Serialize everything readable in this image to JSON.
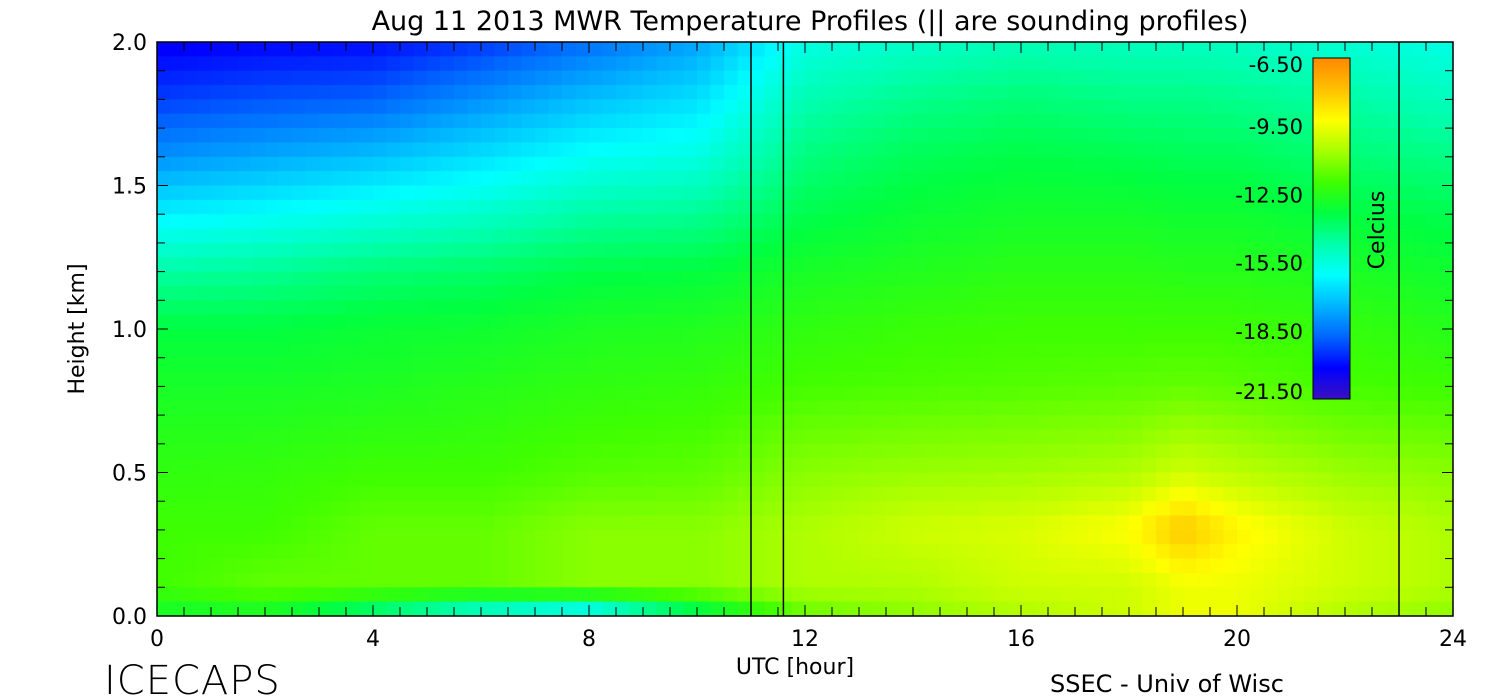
{
  "chart_data": {
    "type": "heatmap",
    "title": "Aug 11 2013 MWR Temperature Profiles (|| are sounding profiles)",
    "xlabel": "UTC [hour]",
    "ylabel": "Height [km]",
    "xlim": [
      0,
      24
    ],
    "ylim": [
      0.0,
      2.0
    ],
    "x_ticks": [
      "0",
      "4",
      "8",
      "12",
      "16",
      "20",
      "24"
    ],
    "y_ticks": [
      "0.0",
      "0.5",
      "1.0",
      "1.5",
      "2.0"
    ],
    "sounding_profiles_utc": [
      11.0,
      11.6,
      23.0
    ],
    "colorbar": {
      "label": "Celcius",
      "ticks": [
        "-6.50",
        "-9.50",
        "-12.50",
        "-15.50",
        "-18.50",
        "-21.50"
      ],
      "range": [
        -21.5,
        -6.5
      ]
    },
    "temperature_field": {
      "height_km": [
        0.0,
        0.1,
        0.3,
        0.5,
        0.8,
        1.0,
        1.2,
        1.4,
        1.6,
        1.8,
        2.0
      ],
      "hours_utc": [
        0,
        2,
        4,
        6,
        8,
        10,
        12,
        14,
        16,
        18,
        19,
        20,
        22,
        24
      ],
      "celsius": [
        [
          -13.0,
          -13.0,
          -14.5,
          -16.0,
          -17.0,
          -14.0,
          -11.5,
          -11.0,
          -10.5,
          -10.0,
          -9.5,
          -9.5,
          -10.5,
          -11.0
        ],
        [
          -12.0,
          -11.5,
          -11.5,
          -11.5,
          -11.0,
          -11.0,
          -10.5,
          -10.5,
          -10.0,
          -10.0,
          -9.5,
          -9.5,
          -10.0,
          -10.5
        ],
        [
          -12.0,
          -12.0,
          -11.5,
          -11.5,
          -11.0,
          -11.0,
          -10.5,
          -10.0,
          -9.8,
          -9.2,
          -8.0,
          -9.0,
          -10.0,
          -10.5
        ],
        [
          -12.3,
          -12.2,
          -12.0,
          -12.0,
          -11.7,
          -11.6,
          -11.0,
          -10.8,
          -10.7,
          -10.5,
          -10.0,
          -10.3,
          -10.8,
          -11.0
        ],
        [
          -12.8,
          -12.8,
          -12.7,
          -12.5,
          -12.3,
          -12.2,
          -11.9,
          -11.8,
          -11.7,
          -11.6,
          -11.5,
          -11.6,
          -11.9,
          -12.0
        ],
        [
          -13.3,
          -13.3,
          -13.1,
          -13.0,
          -12.7,
          -12.6,
          -12.3,
          -12.1,
          -12.0,
          -12.0,
          -12.0,
          -12.0,
          -12.2,
          -12.5
        ],
        [
          -14.6,
          -14.4,
          -14.0,
          -13.8,
          -13.4,
          -13.3,
          -12.8,
          -12.6,
          -12.4,
          -12.4,
          -12.5,
          -12.5,
          -12.7,
          -13.0
        ],
        [
          -16.3,
          -16.0,
          -15.6,
          -15.2,
          -14.6,
          -14.4,
          -13.5,
          -13.1,
          -12.9,
          -12.9,
          -13.0,
          -13.0,
          -13.3,
          -13.5
        ],
        [
          -18.0,
          -17.6,
          -17.2,
          -16.6,
          -15.9,
          -15.6,
          -14.1,
          -13.6,
          -13.4,
          -13.5,
          -13.6,
          -13.6,
          -14.0,
          -14.2
        ],
        [
          -19.3,
          -19.0,
          -18.8,
          -18.0,
          -17.2,
          -16.6,
          -14.8,
          -14.3,
          -14.0,
          -14.2,
          -14.2,
          -14.3,
          -14.6,
          -15.0
        ],
        [
          -20.3,
          -20.1,
          -20.0,
          -19.4,
          -18.6,
          -17.7,
          -15.6,
          -15.2,
          -14.9,
          -15.0,
          -15.0,
          -15.1,
          -15.4,
          -15.6
        ]
      ]
    }
  },
  "footer": {
    "brand": "ICECAPS",
    "credit": "SSEC - Univ of Wisc"
  },
  "colors": {
    "scale": [
      "#3a10c0",
      "#0000ff",
      "#0064ff",
      "#00b4ff",
      "#00ffff",
      "#00ffaa",
      "#00ff40",
      "#40ff00",
      "#a8ff00",
      "#ffff00",
      "#ffc000",
      "#ff8800"
    ]
  }
}
